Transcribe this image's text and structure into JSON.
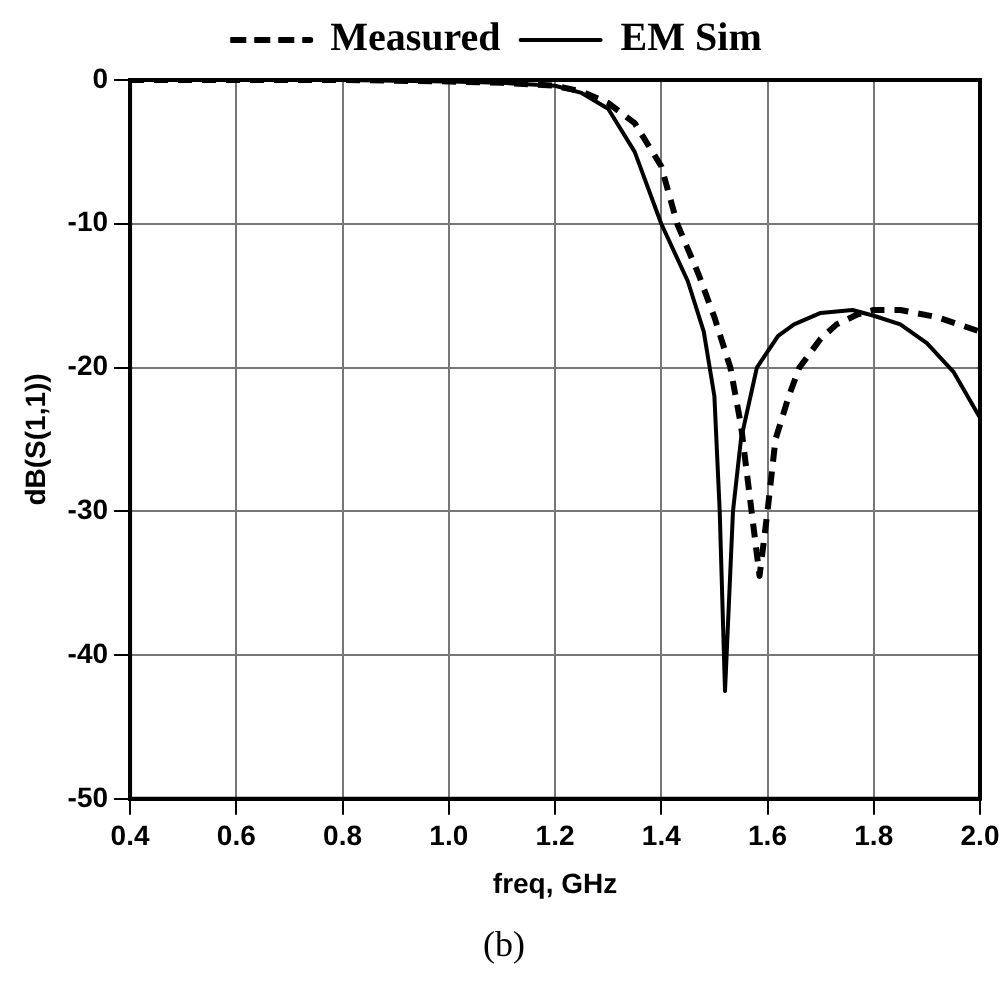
{
  "chart_data": {
    "type": "line",
    "xlabel": "freq, GHz",
    "ylabel": "dB(S(1,1))",
    "annotations": [
      "(b)"
    ],
    "xlim": [
      0.4,
      2.0
    ],
    "ylim": [
      -50,
      0
    ],
    "xticks": [
      {
        "value": 0.4,
        "label": "0.4"
      },
      {
        "value": 0.6,
        "label": "0.6"
      },
      {
        "value": 0.8,
        "label": "0.8"
      },
      {
        "value": 1.0,
        "label": "1.0"
      },
      {
        "value": 1.2,
        "label": "1.2"
      },
      {
        "value": 1.4,
        "label": "1.4"
      },
      {
        "value": 1.6,
        "label": "1.6"
      },
      {
        "value": 1.8,
        "label": "1.8"
      },
      {
        "value": 2.0,
        "label": "2.0"
      }
    ],
    "yticks": [
      -50,
      -40,
      -30,
      -20,
      -10,
      0
    ],
    "grid": true,
    "legend": "top",
    "marker": "none",
    "series": [
      {
        "name": "Measured",
        "color": "#000000",
        "line_style": "dashed",
        "x": [
          0.4,
          0.8,
          1.0,
          1.1,
          1.2,
          1.25,
          1.3,
          1.35,
          1.4,
          1.43,
          1.47,
          1.5,
          1.53,
          1.55,
          1.57,
          1.585,
          1.6,
          1.615,
          1.64,
          1.66,
          1.7,
          1.73,
          1.77,
          1.8,
          1.85,
          1.92,
          2.0
        ],
        "values": [
          0,
          0,
          -0.1,
          -0.2,
          -0.4,
          -0.8,
          -1.6,
          -3,
          -6,
          -10,
          -13.5,
          -16.5,
          -20,
          -24,
          -30,
          -34.5,
          -30,
          -25,
          -22,
          -20,
          -18,
          -17,
          -16.3,
          -16,
          -16,
          -16.5,
          -17.5
        ]
      },
      {
        "name": "EM Sim",
        "color": "#000000",
        "line_style": "solid",
        "x": [
          0.4,
          0.8,
          1.0,
          1.1,
          1.2,
          1.25,
          1.3,
          1.35,
          1.4,
          1.45,
          1.48,
          1.5,
          1.51,
          1.52,
          1.535,
          1.55,
          1.58,
          1.62,
          1.65,
          1.7,
          1.76,
          1.8,
          1.85,
          1.9,
          1.95,
          2.0
        ],
        "values": [
          0,
          0,
          -0.1,
          -0.2,
          -0.4,
          -0.9,
          -2,
          -5,
          -10,
          -14,
          -17.5,
          -22,
          -30,
          -42.5,
          -30,
          -25,
          -20,
          -17.8,
          -17,
          -16.2,
          -16,
          -16.4,
          -17,
          -18.3,
          -20.3,
          -23.5
        ]
      }
    ]
  }
}
